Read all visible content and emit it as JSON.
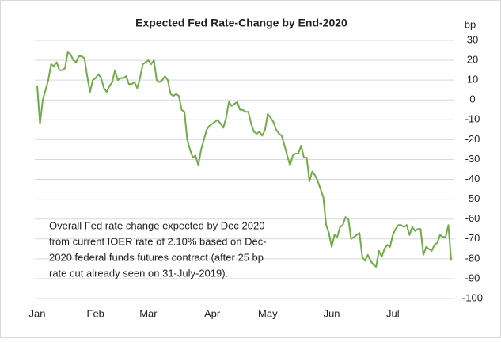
{
  "chart_data": {
    "type": "line",
    "title": "Expected Fed Rate-Change by End-2020",
    "y_axis_label": "bp",
    "annotation": [
      "Overall Fed rate change expected by Dec 2020",
      "from current IOER rate of 2.10% based on Dec-",
      "2020  federal funds futures contract (after 25 bp",
      "rate cut already seen on 31-July-2019)."
    ],
    "categories": [
      "Jan",
      null,
      null,
      null,
      null,
      null,
      null,
      null,
      null,
      null,
      null,
      null,
      null,
      null,
      null,
      null,
      null,
      null,
      null,
      null,
      null,
      "Feb",
      null,
      null,
      null,
      null,
      null,
      null,
      null,
      null,
      null,
      null,
      null,
      null,
      null,
      null,
      null,
      null,
      null,
      null,
      "Mar",
      null,
      null,
      null,
      null,
      null,
      null,
      null,
      null,
      null,
      null,
      null,
      null,
      null,
      null,
      null,
      null,
      null,
      null,
      null,
      null,
      null,
      null,
      "Apr",
      null,
      null,
      null,
      null,
      null,
      null,
      null,
      null,
      null,
      null,
      null,
      null,
      null,
      null,
      null,
      null,
      null,
      null,
      null,
      "May",
      null,
      null,
      null,
      null,
      null,
      null,
      null,
      null,
      null,
      null,
      null,
      null,
      null,
      null,
      null,
      null,
      null,
      null,
      null,
      null,
      null,
      null,
      "Jun",
      null,
      null,
      null,
      null,
      null,
      null,
      null,
      null,
      null,
      null,
      null,
      null,
      null,
      null,
      null,
      null,
      null,
      null,
      null,
      null,
      null,
      "Jul",
      null,
      null,
      null,
      null,
      null,
      null,
      null,
      null,
      null,
      null,
      null,
      null,
      null,
      null,
      null,
      null,
      null,
      null,
      null,
      null,
      null
    ],
    "values": [
      7,
      -12,
      0,
      5,
      10,
      18,
      17,
      19,
      15,
      15,
      16,
      24,
      23,
      20,
      19,
      22,
      22,
      21,
      12,
      4,
      10,
      11,
      13,
      11,
      6,
      4,
      7,
      9,
      15,
      10,
      11,
      11,
      12,
      8,
      8,
      9,
      6,
      11,
      18,
      19,
      20,
      18,
      20,
      10,
      9,
      10,
      12,
      10,
      3,
      2,
      3,
      2,
      -5,
      -6,
      -20,
      -25,
      -29,
      -28,
      -33,
      -25,
      -20,
      -15,
      -13,
      -12,
      -11,
      -10,
      -12,
      -14,
      -9,
      -1,
      -3,
      -2,
      -1,
      -5,
      -5,
      -6,
      -6,
      -12,
      -16,
      -17,
      -16,
      -18,
      -15,
      -7,
      -9,
      -11,
      -15,
      -17,
      -18,
      -23,
      -28,
      -33,
      -28,
      -27,
      -27,
      -23,
      -29,
      -29,
      -41,
      -36,
      -38,
      -41,
      -45,
      -49,
      -63,
      -67,
      -74,
      -68,
      -69,
      -64,
      -63,
      -59,
      -60,
      -70,
      -69,
      -68,
      -67,
      -79,
      -81,
      -78,
      -81,
      -83,
      -84,
      -76,
      -79,
      -75,
      -73,
      -74,
      -68,
      -65,
      -63,
      -63,
      -64,
      -63,
      -68,
      -64,
      -66,
      -65,
      -65,
      -78,
      -74,
      -75,
      -76,
      -73,
      -72,
      -68,
      -69,
      -69,
      -63,
      -81
    ],
    "color": "#70ad47",
    "ylim": [
      -100,
      30
    ],
    "yticks": [
      -100,
      -90,
      -80,
      -70,
      -60,
      -50,
      -40,
      -30,
      -20,
      -10,
      0,
      10,
      20,
      30
    ],
    "grid": true
  }
}
